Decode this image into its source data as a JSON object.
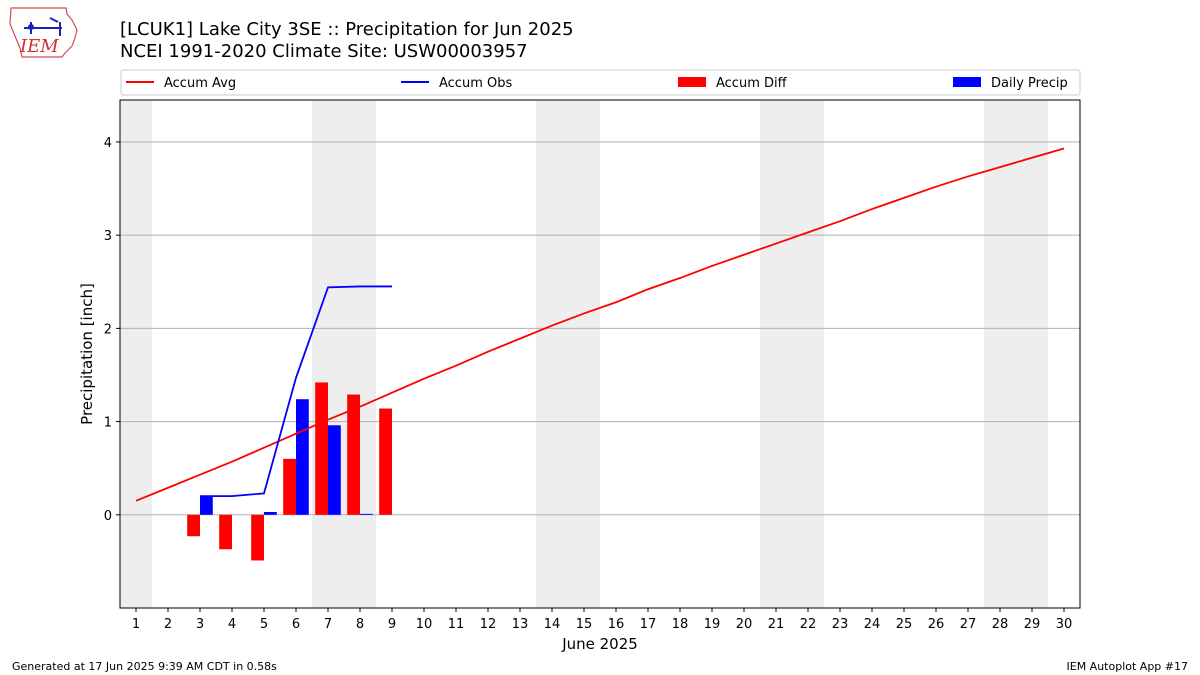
{
  "header": {
    "title_line1": "[LCUK1] Lake City 3SE :: Precipitation for Jun 2025",
    "title_line2": "NCEI 1991-2020 Climate Site: USW00003957",
    "logo_text": "IEM"
  },
  "footer": {
    "left": "Generated at 17 Jun 2025 9:39 AM CDT in 0.58s",
    "right": "IEM Autoplot App #17"
  },
  "colors": {
    "avg": "#ff0000",
    "obs": "#0000ff",
    "diff": "#ff0000",
    "daily": "#0000ff",
    "weekend_shade": "#eeeeee",
    "grid": "#b0b0b0"
  },
  "chart_data": {
    "type": "bar",
    "xlabel": "June 2025",
    "ylabel": "Precipitation [inch]",
    "xlim": [
      0.5,
      30.5
    ],
    "ylim": [
      -1.0,
      4.45
    ],
    "x_ticks": [
      1,
      2,
      3,
      4,
      5,
      6,
      7,
      8,
      9,
      10,
      11,
      12,
      13,
      14,
      15,
      16,
      17,
      18,
      19,
      20,
      21,
      22,
      23,
      24,
      25,
      26,
      27,
      28,
      29,
      30
    ],
    "y_ticks": [
      0,
      1,
      2,
      3,
      4
    ],
    "grid": "horizontal",
    "legend_position": "top",
    "weekend_shading": [
      [
        0.5,
        1.5
      ],
      [
        6.5,
        8.5
      ],
      [
        13.5,
        15.5
      ],
      [
        20.5,
        22.5
      ],
      [
        27.5,
        29.5
      ]
    ],
    "series": [
      {
        "name": "Accum Avg",
        "kind": "line",
        "x": [
          1,
          2,
          3,
          4,
          5,
          6,
          7,
          8,
          9,
          10,
          11,
          12,
          13,
          14,
          15,
          16,
          17,
          18,
          19,
          20,
          21,
          22,
          23,
          24,
          25,
          26,
          27,
          28,
          29,
          30
        ],
        "values": [
          0.15,
          0.29,
          0.43,
          0.57,
          0.72,
          0.87,
          1.02,
          1.16,
          1.31,
          1.46,
          1.6,
          1.75,
          1.89,
          2.03,
          2.16,
          2.28,
          2.42,
          2.54,
          2.67,
          2.79,
          2.91,
          3.03,
          3.15,
          3.28,
          3.4,
          3.52,
          3.63,
          3.73,
          3.83,
          3.93
        ]
      },
      {
        "name": "Accum Obs",
        "kind": "line",
        "x": [
          3,
          4,
          5,
          6,
          7,
          8,
          9
        ],
        "values": [
          0.2,
          0.2,
          0.23,
          1.47,
          2.44,
          2.45,
          2.45
        ]
      },
      {
        "name": "Accum Diff",
        "kind": "bar",
        "x": [
          3,
          4,
          5,
          6,
          7,
          8,
          9
        ],
        "values": [
          -0.23,
          -0.37,
          -0.49,
          0.6,
          1.42,
          1.29,
          1.14
        ]
      },
      {
        "name": "Daily Precip",
        "kind": "bar",
        "x": [
          3,
          4,
          5,
          6,
          7,
          8,
          9
        ],
        "values": [
          0.2,
          0.0,
          0.03,
          1.24,
          0.96,
          0.01,
          0.0
        ]
      }
    ]
  }
}
